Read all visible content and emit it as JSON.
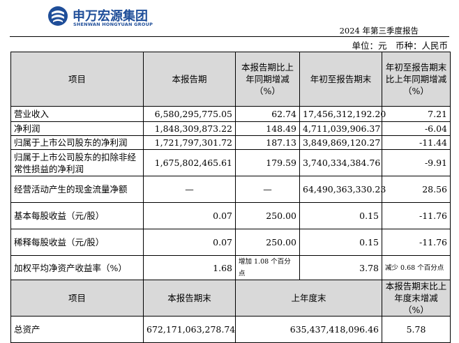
{
  "logo": {
    "cn": "申万宏源集团",
    "en": "SHENWAN HONGYUAN GROUP"
  },
  "report_period": "2024 年第三季度报告",
  "unit_line": "单位：元　币种：人民币",
  "table1": {
    "headers": [
      "项目",
      "本报告期",
      "本报告期比上年同期增减（%）",
      "年初至报告期末",
      "年初至报告期末比上年同期增减（%）"
    ],
    "rows": [
      [
        "营业收入",
        "6,580,295,775.05",
        "62.74",
        "17,456,312,192.20",
        "7.21"
      ],
      [
        "净利润",
        "1,848,309,873.22",
        "148.49",
        "4,711,039,906.37",
        "-6.04"
      ],
      [
        "归属于上市公司股东的净利润",
        "1,721,797,301.72",
        "187.13",
        "3,849,869,120.27",
        "-11.44"
      ],
      [
        "归属于上市公司股东的扣除非经常性损益的净利润",
        "1,675,802,465.61",
        "179.59",
        "3,740,334,384.76",
        "-9.91"
      ],
      [
        "经营活动产生的现金流量净额",
        "—",
        "—",
        "64,490,363,330.23",
        "28.56"
      ],
      [
        "基本每股收益（元/股）",
        "0.07",
        "250.00",
        "0.15",
        "-11.76"
      ],
      [
        "稀释每股收益（元/股）",
        "0.07",
        "250.00",
        "0.15",
        "-11.76"
      ],
      [
        "加权平均净资产收益率（%）",
        "1.68",
        "增加 1.08 个百分点",
        "3.78",
        "减少 0.68 个百分点"
      ]
    ]
  },
  "table2": {
    "headers": [
      "项目",
      "本报告期末",
      "上年度末",
      "本报告期末比上年度末增减（%）"
    ],
    "rows": [
      [
        "总资产",
        "672,171,063,278.74",
        "635,437,418,096.46",
        "5.78"
      ]
    ]
  }
}
